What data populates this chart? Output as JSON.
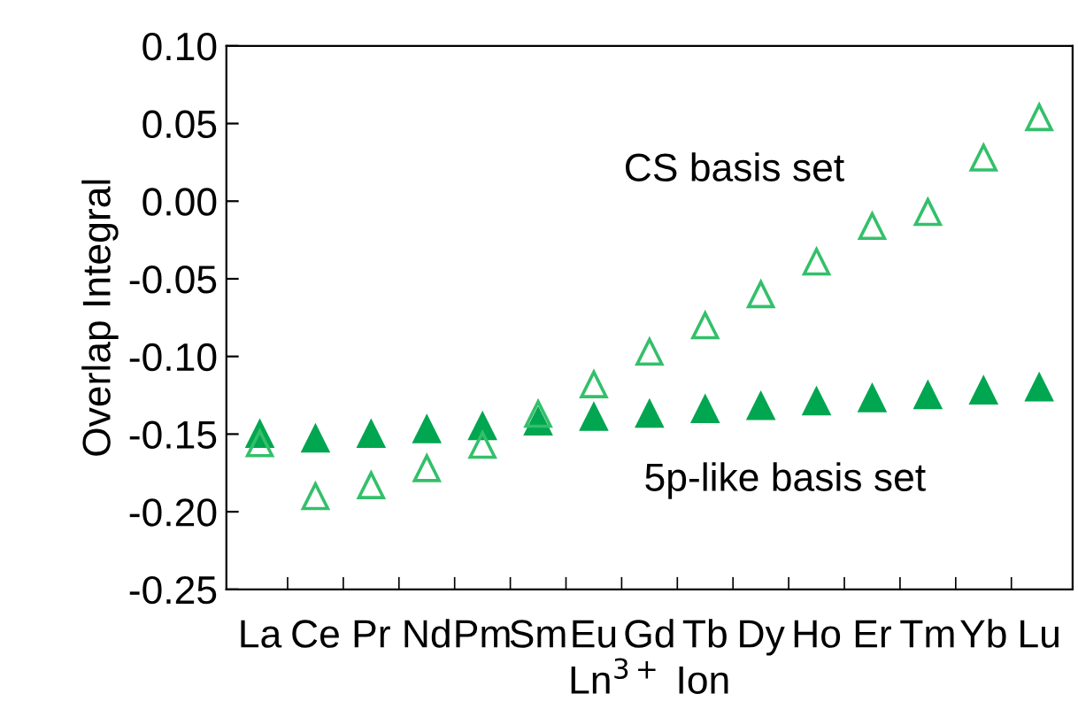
{
  "chart_data": {
    "type": "scatter",
    "xlabel": "Ln$^{3+}$ Ion",
    "ylabel": "Overlap Integral",
    "categories": [
      "La",
      "Ce",
      "Pr",
      "Nd",
      "Pm",
      "Sm",
      "Eu",
      "Gd",
      "Tb",
      "Dy",
      "Ho",
      "Er",
      "Tm",
      "Yb",
      "Lu"
    ],
    "series": [
      {
        "name": "CS basis set",
        "color": "#33c06a",
        "values": [
          -0.156,
          -0.19,
          -0.183,
          -0.172,
          -0.157,
          -0.137,
          -0.118,
          -0.097,
          -0.08,
          -0.06,
          -0.039,
          -0.016,
          -0.007,
          0.028,
          0.054
        ]
      },
      {
        "name": "5p-like basis set",
        "color": "#00a650",
        "values": [
          -0.15,
          -0.153,
          -0.15,
          -0.147,
          -0.145,
          -0.142,
          -0.139,
          -0.137,
          -0.134,
          -0.132,
          -0.129,
          -0.127,
          -0.125,
          -0.122,
          -0.12
        ]
      }
    ],
    "marker": "triangle",
    "ylim": [
      -0.25,
      0.1
    ],
    "yticks": [
      {
        "value": -0.25,
        "label": "-0.25"
      },
      {
        "value": -0.2,
        "label": "-0.20"
      },
      {
        "value": -0.15,
        "label": "-0.15"
      },
      {
        "value": -0.1,
        "label": "-0.10"
      },
      {
        "value": -0.05,
        "label": "-0.05"
      },
      {
        "value": 0.0,
        "label": "0.00"
      },
      {
        "value": 0.05,
        "label": "0.05"
      },
      {
        "value": 0.1,
        "label": "0.10"
      }
    ],
    "grid": false,
    "legend": false
  }
}
